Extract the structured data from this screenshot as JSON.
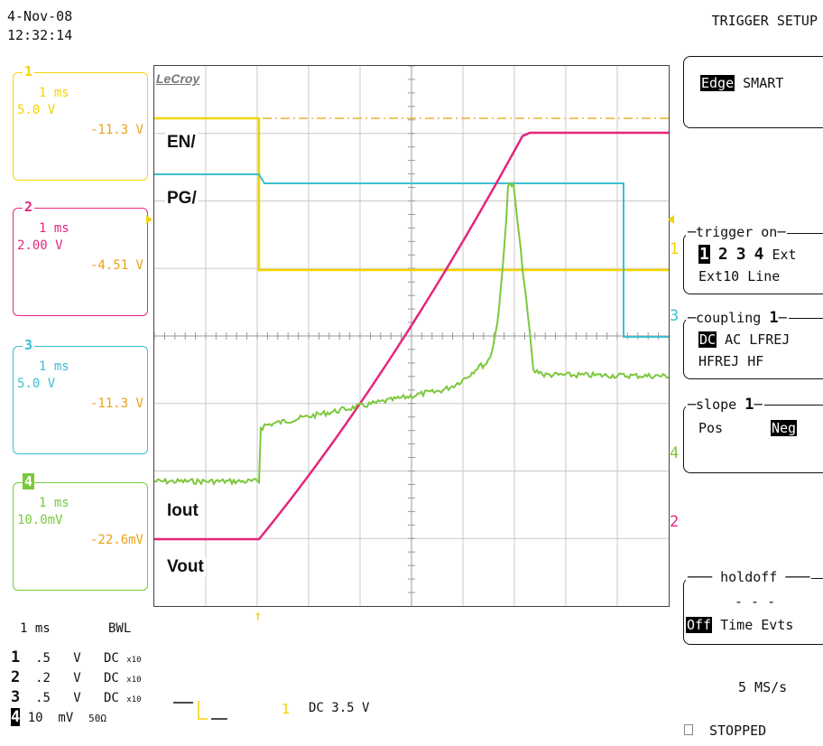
{
  "datetime": {
    "date": "4-Nov-08",
    "time": "12:32:14"
  },
  "channels": [
    {
      "num": "1",
      "timebase": "1 ms",
      "scale": "5.0 V",
      "offset": "-11.3 V",
      "color": "#f5d400"
    },
    {
      "num": "2",
      "timebase": "1 ms",
      "scale": "2.00 V",
      "offset": "-4.51 V",
      "color": "#e5267c"
    },
    {
      "num": "3",
      "timebase": "1 ms",
      "scale": "5.0 V",
      "offset": "-11.3 V",
      "color": "#3cbfd0"
    },
    {
      "num": "4",
      "timebase": "1 ms",
      "scale": "10.0mV",
      "offset": "-22.6mV",
      "color": "#7cc83c"
    }
  ],
  "screen": {
    "brand": "LeCroy",
    "labels": {
      "en": "EN/",
      "pg": "PG/",
      "iout": "Iout",
      "vout": "Vout"
    },
    "right_markers": [
      "1",
      "3",
      "4",
      "2"
    ]
  },
  "menu": {
    "title": "TRIGGER SETUP",
    "type": {
      "selected": "Edge",
      "other": "SMART"
    },
    "trigger_on": {
      "header": "trigger on",
      "sources_row1": [
        "1",
        "2",
        "3",
        "4",
        "Ext"
      ],
      "sources_row2": [
        "Ext10",
        "Line"
      ],
      "selected": "1"
    },
    "coupling": {
      "header": "coupling",
      "channel": "1",
      "selected": "DC",
      "opts_row1": [
        "AC",
        "LFREJ"
      ],
      "opts_row2": [
        "HFREJ",
        "HF"
      ]
    },
    "slope": {
      "header": "slope",
      "channel": "1",
      "pos": "Pos",
      "neg": "Neg",
      "selected": "Neg"
    },
    "holdoff": {
      "header": "holdoff",
      "value": "- - -",
      "selected": "Off",
      "time": "Time",
      "evts": "Evts"
    },
    "sample_rate": "5 MS/s",
    "status": "STOPPED"
  },
  "readouts": {
    "timebase": "1 ms",
    "bwl": "BWL",
    "rows": [
      {
        "ch": "1",
        "value": ".5",
        "unit": "V",
        "coupling": "DC",
        "probe": "x10"
      },
      {
        "ch": "2",
        "value": ".2",
        "unit": "V",
        "coupling": "DC",
        "probe": "x10"
      },
      {
        "ch": "3",
        "value": ".5",
        "unit": "V",
        "coupling": "DC",
        "probe": "x10"
      },
      {
        "ch": "4",
        "value": "10",
        "unit": "mV",
        "coupling": "50Ω",
        "probe": ""
      }
    ],
    "trigger_channel": "1",
    "trigger_level": "DC 3.5 V"
  }
}
